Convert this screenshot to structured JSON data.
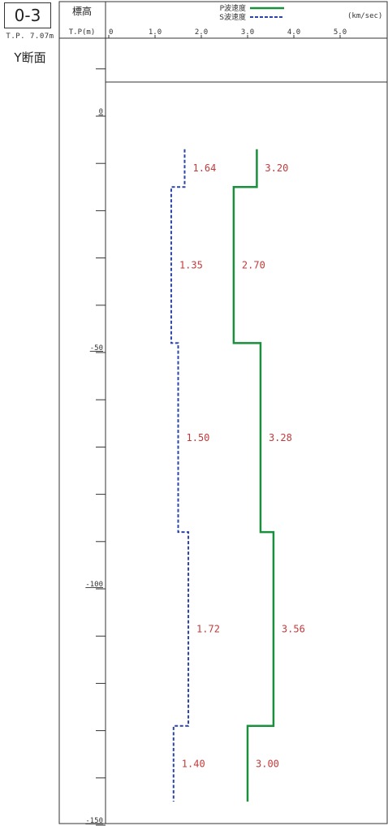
{
  "header": {
    "id_label": "0-3",
    "tp_label": "T.P. 7.07m",
    "section_label": "Y断面",
    "elev_title": "標高",
    "elev_unit": "T.P(m)",
    "unit_label": "(km/sec)"
  },
  "colors": {
    "p_wave": "#1a8f3c",
    "s_wave": "#2a44a8",
    "value_label": "#c43a3a",
    "axis": "#333333"
  },
  "chart_data": {
    "type": "line",
    "x_ticks": [
      "0",
      "1.0",
      "2.0",
      "3.0",
      "4.0",
      "5.0"
    ],
    "y_ticks": [
      "0",
      "-50",
      "-100",
      "-150"
    ],
    "xlim": [
      0,
      6
    ],
    "ylim": [
      -150,
      8
    ],
    "legend": [
      {
        "name": "P波速度",
        "style": "solid"
      },
      {
        "name": "S波速度",
        "style": "dashed"
      }
    ],
    "series": [
      {
        "name": "P波速度",
        "layers": [
          {
            "top": -7,
            "bottom": -15,
            "value": 3.2,
            "label": "3.20"
          },
          {
            "top": -15,
            "bottom": -48,
            "value": 2.7,
            "label": "2.70"
          },
          {
            "top": -48,
            "bottom": -88,
            "value": 3.28,
            "label": "3.28"
          },
          {
            "top": -88,
            "bottom": -129,
            "value": 3.56,
            "label": "3.56"
          },
          {
            "top": -129,
            "bottom": -145,
            "value": 3.0,
            "label": "3.00"
          }
        ]
      },
      {
        "name": "S波速度",
        "layers": [
          {
            "top": -7,
            "bottom": -15,
            "value": 1.64,
            "label": "1.64"
          },
          {
            "top": -15,
            "bottom": -48,
            "value": 1.35,
            "label": "1.35"
          },
          {
            "top": -48,
            "bottom": -88,
            "value": 1.5,
            "label": "1.50"
          },
          {
            "top": -88,
            "bottom": -129,
            "value": 1.72,
            "label": "1.72"
          },
          {
            "top": -129,
            "bottom": -145,
            "value": 1.4,
            "label": "1.40"
          }
        ]
      }
    ]
  }
}
